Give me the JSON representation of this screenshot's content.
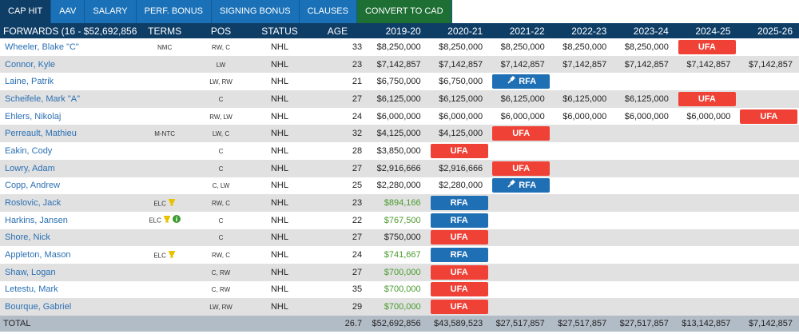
{
  "tabs": [
    {
      "label": "CAP HIT",
      "active": true
    },
    {
      "label": "AAV"
    },
    {
      "label": "SALARY"
    },
    {
      "label": "PERF. BONUS"
    },
    {
      "label": "SIGNING BONUS"
    },
    {
      "label": "CLAUSES"
    },
    {
      "label": "CONVERT TO CAD",
      "green": true
    }
  ],
  "table": {
    "headers": [
      "FORWARDS (16 - $52,692,856)",
      "TERMS",
      "POS",
      "STATUS",
      "AGE",
      "2019-20",
      "2020-21",
      "2021-22",
      "2022-23",
      "2023-24",
      "2024-25",
      "2025-26"
    ],
    "rows": [
      {
        "name": "Wheeler, Blake \"C\"",
        "terms": "NMC",
        "pos": "RW, C",
        "status": "NHL",
        "age": "33",
        "years": [
          "$8,250,000",
          "$8,250,000",
          "$8,250,000",
          "$8,250,000",
          "$8,250,000",
          "UFA",
          ""
        ]
      },
      {
        "name": "Connor, Kyle",
        "terms": "",
        "pos": "LW",
        "status": "NHL",
        "age": "23",
        "years": [
          "$7,142,857",
          "$7,142,857",
          "$7,142,857",
          "$7,142,857",
          "$7,142,857",
          "$7,142,857",
          "$7,142,857"
        ]
      },
      {
        "name": "Laine, Patrik",
        "terms": "",
        "pos": "LW, RW",
        "status": "NHL",
        "age": "21",
        "years": [
          "$6,750,000",
          "$6,750,000",
          "RFA",
          "",
          "",
          "",
          ""
        ]
      },
      {
        "name": "Scheifele, Mark \"A\"",
        "terms": "",
        "pos": "C",
        "status": "NHL",
        "age": "27",
        "years": [
          "$6,125,000",
          "$6,125,000",
          "$6,125,000",
          "$6,125,000",
          "$6,125,000",
          "UFA",
          ""
        ]
      },
      {
        "name": "Ehlers, Nikolaj",
        "terms": "",
        "pos": "RW, LW",
        "status": "NHL",
        "age": "24",
        "years": [
          "$6,000,000",
          "$6,000,000",
          "$6,000,000",
          "$6,000,000",
          "$6,000,000",
          "$6,000,000",
          "UFA"
        ]
      },
      {
        "name": "Perreault, Mathieu",
        "terms": "M-NTC",
        "pos": "LW, C",
        "status": "NHL",
        "age": "32",
        "years": [
          "$4,125,000",
          "$4,125,000",
          "UFA",
          "",
          "",
          "",
          ""
        ]
      },
      {
        "name": "Eakin, Cody",
        "terms": "",
        "pos": "C",
        "status": "NHL",
        "age": "28",
        "years": [
          "$3,850,000",
          "UFA",
          "",
          "",
          "",
          "",
          ""
        ]
      },
      {
        "name": "Lowry, Adam",
        "terms": "",
        "pos": "C",
        "status": "NHL",
        "age": "27",
        "years": [
          "$2,916,666",
          "$2,916,666",
          "UFA",
          "",
          "",
          "",
          ""
        ]
      },
      {
        "name": "Copp, Andrew",
        "terms": "",
        "pos": "C, LW",
        "status": "NHL",
        "age": "25",
        "years": [
          "$2,280,000",
          "$2,280,000",
          "RFA",
          "",
          "",
          "",
          ""
        ]
      },
      {
        "name": "Roslovic, Jack",
        "terms": "ELC",
        "pos": "RW, C",
        "status": "NHL",
        "age": "23",
        "green": true,
        "years": [
          "$894,166",
          "RFA",
          "",
          "",
          "",
          "",
          ""
        ]
      },
      {
        "name": "Harkins, Jansen",
        "terms": "ELC",
        "pos": "C",
        "status": "NHL",
        "age": "22",
        "green": true,
        "years": [
          "$767,500",
          "RFA",
          "",
          "",
          "",
          "",
          ""
        ]
      },
      {
        "name": "Shore, Nick",
        "terms": "",
        "pos": "C",
        "status": "NHL",
        "age": "27",
        "years": [
          "$750,000",
          "UFA",
          "",
          "",
          "",
          "",
          ""
        ]
      },
      {
        "name": "Appleton, Mason",
        "terms": "ELC",
        "pos": "RW, C",
        "status": "NHL",
        "age": "24",
        "green": true,
        "years": [
          "$741,667",
          "RFA",
          "",
          "",
          "",
          "",
          ""
        ]
      },
      {
        "name": "Shaw, Logan",
        "terms": "",
        "pos": "C, RW",
        "status": "NHL",
        "age": "27",
        "green": true,
        "years": [
          "$700,000",
          "UFA",
          "",
          "",
          "",
          "",
          ""
        ]
      },
      {
        "name": "Letestu, Mark",
        "terms": "",
        "pos": "C, RW",
        "status": "NHL",
        "age": "35",
        "green": true,
        "years": [
          "$700,000",
          "UFA",
          "",
          "",
          "",
          "",
          ""
        ]
      },
      {
        "name": "Bourque, Gabriel",
        "terms": "",
        "pos": "LW, RW",
        "status": "NHL",
        "age": "29",
        "green": true,
        "years": [
          "$700,000",
          "UFA",
          "",
          "",
          "",
          "",
          ""
        ]
      }
    ],
    "total": {
      "label": "TOTAL",
      "age": "26.7",
      "years": [
        "$52,692,856",
        "$43,589,523",
        "$27,517,857",
        "$27,517,857",
        "$27,517,857",
        "$13,142,857",
        "$7,142,857"
      ]
    }
  },
  "colors": {
    "header": "#0e3d66",
    "tab": "#1a71b8",
    "convert_tab": "#1d6f34",
    "ufa": "#ef4136",
    "rfa": "#1f6fb5",
    "elc_value": "#4a9b2f",
    "link": "#2a6fb3"
  },
  "icons": {
    "arbitration": "gavel-icon",
    "elc_trophy": "trophy-icon",
    "elc_info": "info-circle-icon"
  }
}
